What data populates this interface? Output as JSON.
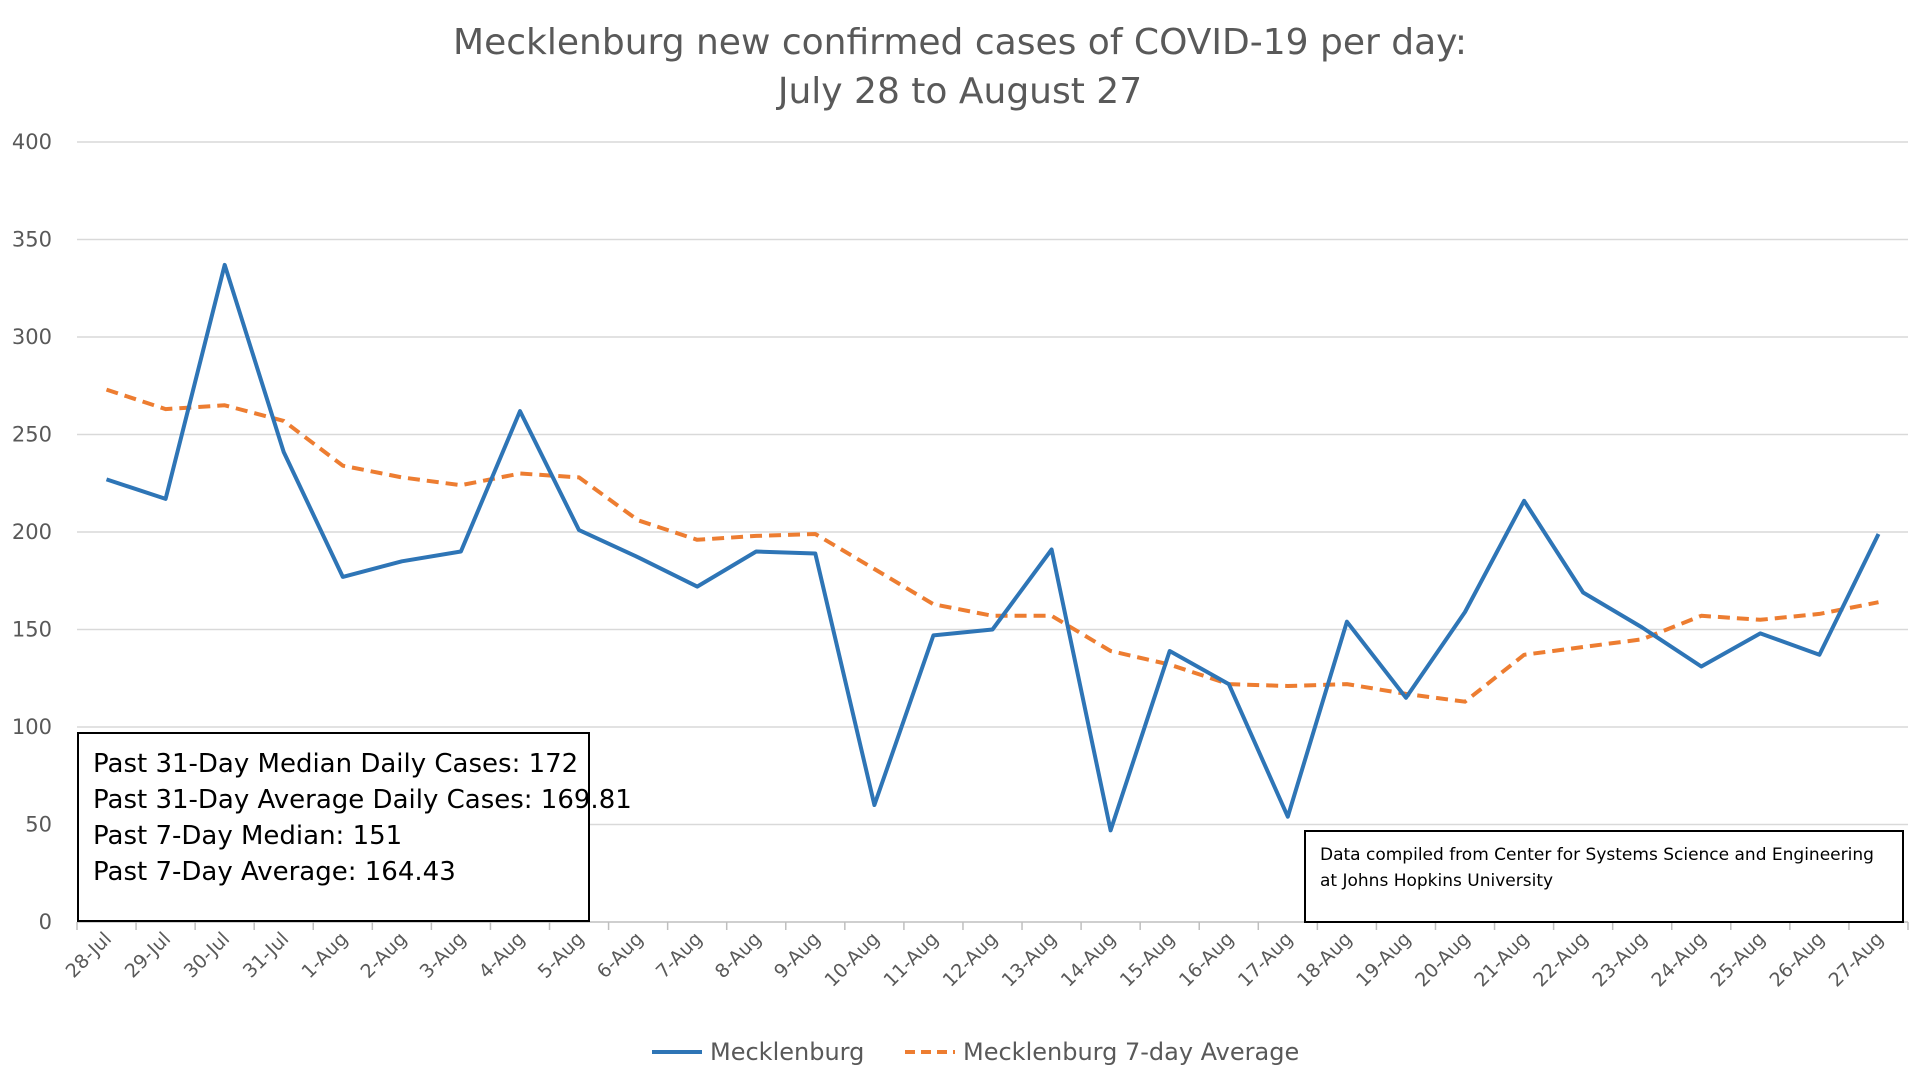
{
  "chart_data": {
    "type": "line",
    "title_lines": [
      "Mecklenburg new confirmed cases of COVID-19 per day:",
      "July 28 to August 27"
    ],
    "categories": [
      "28-Jul",
      "29-Jul",
      "30-Jul",
      "31-Jul",
      "1-Aug",
      "2-Aug",
      "3-Aug",
      "4-Aug",
      "5-Aug",
      "6-Aug",
      "7-Aug",
      "8-Aug",
      "9-Aug",
      "10-Aug",
      "11-Aug",
      "12-Aug",
      "13-Aug",
      "14-Aug",
      "15-Aug",
      "16-Aug",
      "17-Aug",
      "18-Aug",
      "19-Aug",
      "20-Aug",
      "21-Aug",
      "22-Aug",
      "23-Aug",
      "24-Aug",
      "25-Aug",
      "26-Aug",
      "27-Aug"
    ],
    "series": [
      {
        "name": "Mecklenburg",
        "color": "#2E75B6",
        "style": "solid",
        "values": [
          227,
          217,
          337,
          241,
          177,
          185,
          190,
          262,
          201,
          187,
          172,
          190,
          189,
          60,
          147,
          150,
          191,
          47,
          139,
          122,
          54,
          154,
          115,
          159,
          216,
          169,
          151,
          131,
          148,
          137,
          199
        ]
      },
      {
        "name": "Mecklenburg 7-day Average",
        "color": "#ED7D31",
        "style": "dashed",
        "values": [
          273,
          263,
          265,
          257,
          234,
          228,
          224,
          230,
          228,
          206,
          196,
          198,
          199,
          181,
          163,
          157,
          157,
          139,
          132,
          122,
          121,
          122,
          117,
          113,
          137,
          141,
          145,
          157,
          155,
          158,
          164
        ]
      }
    ],
    "ylim": [
      0,
      400
    ],
    "yticks": [
      0,
      50,
      100,
      150,
      200,
      250,
      300,
      350,
      400
    ],
    "grid": true,
    "legend_position": "bottom"
  },
  "annotations": {
    "stats_lines": [
      "Past 31-Day Median Daily Cases: 172",
      "Past 31-Day Average Daily Cases: 169.81",
      "Past 7-Day Median: 151",
      "Past 7-Day Average: 164.43"
    ],
    "source_lines": [
      "Data compiled from Center for Systems Science and Engineering",
      "at Johns Hopkins University"
    ]
  }
}
